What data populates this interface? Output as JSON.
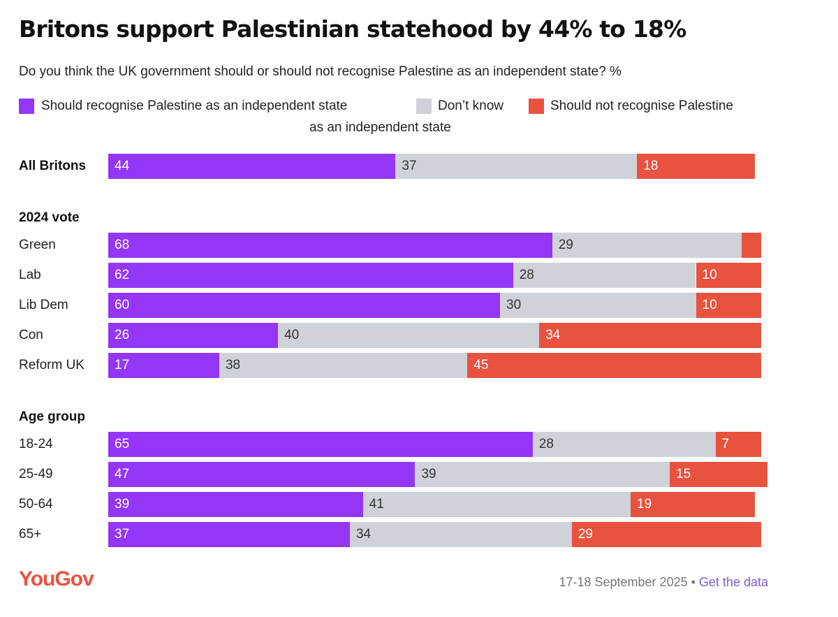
{
  "chart_data": {
    "type": "bar",
    "stacked": true,
    "orientation": "horizontal",
    "title": "Britons support Palestinian statehood by 44% to 18%",
    "subtitle": "Do you think the UK government should or should not recognise Palestine as an independent state? %",
    "legend": [
      {
        "name": "Should recognise Palestine as an independent state",
        "color": "#9436f5"
      },
      {
        "name": "Don’t know",
        "color": "#cfd2d8"
      },
      {
        "name": "Should not recognise Palestine",
        "continuation": "as an independent state",
        "color": "#e8533f"
      }
    ],
    "series_names": [
      "Should recognise Palestine as an independent state",
      "Don’t know",
      "Should not recognise Palestine as an independent state"
    ],
    "groups": [
      {
        "label": "",
        "rows": [
          {
            "label": "All Britons",
            "bold": true,
            "values": [
              44,
              37,
              18
            ],
            "labels": [
              "44",
              "37",
              "18"
            ]
          }
        ]
      },
      {
        "label": "2024 vote",
        "rows": [
          {
            "label": "Green",
            "values": [
              68,
              29,
              3
            ],
            "labels": [
              "68",
              "29",
              ""
            ]
          },
          {
            "label": "Lab",
            "values": [
              62,
              28,
              10
            ],
            "labels": [
              "62",
              "28",
              "10"
            ]
          },
          {
            "label": "Lib Dem",
            "values": [
              60,
              30,
              10
            ],
            "labels": [
              "60",
              "30",
              "10"
            ]
          },
          {
            "label": "Con",
            "values": [
              26,
              40,
              34
            ],
            "labels": [
              "26",
              "40",
              "34"
            ]
          },
          {
            "label": "Reform UK",
            "values": [
              17,
              38,
              45
            ],
            "labels": [
              "17",
              "38",
              "45"
            ]
          }
        ]
      },
      {
        "label": "Age group",
        "rows": [
          {
            "label": "18-24",
            "values": [
              65,
              28,
              7
            ],
            "labels": [
              "65",
              "28",
              "7"
            ]
          },
          {
            "label": "25-49",
            "values": [
              47,
              39,
              15
            ],
            "labels": [
              "47",
              "39",
              "15"
            ]
          },
          {
            "label": "50-64",
            "values": [
              39,
              41,
              19
            ],
            "labels": [
              "39",
              "41",
              "19"
            ]
          },
          {
            "label": "65+",
            "values": [
              37,
              34,
              29
            ],
            "labels": [
              "37",
              "34",
              "29"
            ]
          }
        ]
      }
    ],
    "xlim": [
      0,
      100
    ]
  },
  "footer": {
    "logo": "YouGov",
    "date": "17-18 September 2025",
    "separator": " • ",
    "link": "Get the data"
  }
}
